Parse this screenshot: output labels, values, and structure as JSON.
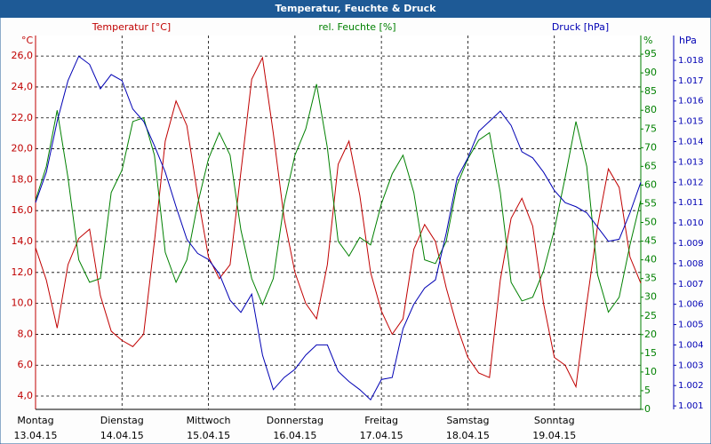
{
  "chart_data": {
    "type": "line",
    "title": "Temperatur, Feuchte & Druck",
    "ylabel": "°C",
    "y2label": "%",
    "y3label": "hPa",
    "x": [
      0,
      0.125,
      0.25,
      0.375,
      0.5,
      0.625,
      0.75,
      0.875,
      1,
      1.125,
      1.25,
      1.375,
      1.5,
      1.625,
      1.75,
      1.875,
      2,
      2.125,
      2.25,
      2.375,
      2.5,
      2.625,
      2.75,
      2.875,
      3,
      3.125,
      3.25,
      3.375,
      3.5,
      3.625,
      3.75,
      3.875,
      4,
      4.125,
      4.25,
      4.375,
      4.5,
      4.625,
      4.75,
      4.875,
      5,
      5.125,
      5.25,
      5.375,
      5.5,
      5.625,
      5.75,
      5.875,
      6,
      6.125,
      6.25,
      6.375,
      6.5,
      6.625,
      6.75,
      6.875,
      7
    ],
    "xlim": [
      0,
      7
    ],
    "xticks": [
      {
        "value": 0,
        "label": "Montag"
      },
      {
        "value": 1,
        "label": "Dienstag"
      },
      {
        "value": 2,
        "label": "Mittwoch"
      },
      {
        "value": 3,
        "label": "Donnerstag"
      },
      {
        "value": 4,
        "label": "Freitag"
      },
      {
        "value": 5,
        "label": "Samstag"
      },
      {
        "value": 6,
        "label": "Sonntag"
      }
    ],
    "xtick_dates": [
      "13.04.15",
      "14.04.15",
      "15.04.15",
      "16.04.15",
      "17.04.15",
      "18.04.15",
      "19.04.15"
    ],
    "ylim": [
      3.14,
      27.33
    ],
    "yticks": [
      {
        "value": 4,
        "label": "4,0"
      },
      {
        "value": 6,
        "label": "6,0"
      },
      {
        "value": 8,
        "label": "8,0"
      },
      {
        "value": 10,
        "label": "10,0"
      },
      {
        "value": 12,
        "label": "12,0"
      },
      {
        "value": 14,
        "label": "14,0"
      },
      {
        "value": 16,
        "label": "16,0"
      },
      {
        "value": 18,
        "label": "18,0"
      },
      {
        "value": 20,
        "label": "20,0"
      },
      {
        "value": 22,
        "label": "22,0"
      },
      {
        "value": 24,
        "label": "24,0"
      },
      {
        "value": 26,
        "label": "26,0"
      }
    ],
    "y2lim": [
      0,
      100
    ],
    "y2ticks": [
      0,
      5,
      10,
      15,
      20,
      25,
      30,
      35,
      40,
      45,
      50,
      55,
      60,
      65,
      70,
      75,
      80,
      85,
      90,
      95
    ],
    "y3lim": [
      1.00083,
      1.01922
    ],
    "y3ticks": [
      1.001,
      1.002,
      1.003,
      1.004,
      1.005,
      1.006,
      1.007,
      1.008,
      1.009,
      {
        "value": 1.01,
        "label": "1.010"
      },
      1.011,
      1.012,
      1.013,
      1.014,
      1.015,
      1.016,
      1.017,
      1.018
    ],
    "grid": true,
    "series": [
      {
        "name": "Temperatur [°C]",
        "color": "#c00000",
        "axis": "y",
        "values": [
          13.6,
          11.5,
          8.4,
          12.5,
          14.2,
          14.8,
          10.5,
          8.2,
          7.6,
          7.2,
          8.0,
          14.0,
          20.5,
          23.1,
          21.5,
          17.0,
          13.0,
          11.6,
          12.5,
          18.5,
          24.5,
          25.9,
          21.0,
          15.5,
          12.0,
          10.0,
          9.0,
          12.5,
          19.0,
          20.5,
          17.0,
          12.0,
          9.5,
          8.0,
          9.0,
          13.5,
          15.1,
          14.0,
          11.0,
          8.5,
          6.5,
          5.5,
          5.2,
          11.5,
          15.5,
          16.8,
          15.0,
          10.0,
          6.5,
          6.0,
          4.6,
          10.0,
          15.0,
          18.7,
          17.5,
          13.0,
          11.3
        ]
      },
      {
        "name": "rel. Feuchte [%]",
        "color": "#008000",
        "axis": "y2",
        "values": [
          56,
          65,
          80,
          62,
          40,
          34,
          35,
          58,
          64,
          77,
          78,
          68,
          42,
          34,
          40,
          55,
          67,
          74,
          68,
          48,
          35,
          28,
          35,
          55,
          68,
          75,
          87,
          70,
          45,
          41,
          46,
          44,
          55,
          63,
          68,
          58,
          40,
          39,
          45,
          60,
          67,
          72,
          74,
          58,
          34,
          29,
          30,
          37,
          48,
          62,
          77,
          65,
          36,
          26,
          30,
          44,
          56
        ]
      },
      {
        "name": "Druck [hPa]",
        "color": "#0000b4",
        "axis": "y3",
        "values": [
          1.011,
          1.0125,
          1.015,
          1.017,
          1.0182,
          1.0178,
          1.0166,
          1.0173,
          1.017,
          1.0156,
          1.015,
          1.0138,
          1.0125,
          1.0108,
          1.0092,
          1.0085,
          1.0082,
          1.0075,
          1.0062,
          1.0056,
          1.0065,
          1.0035,
          1.0018,
          1.0024,
          1.0028,
          1.0035,
          1.004,
          1.004,
          1.0027,
          1.0022,
          1.0018,
          1.0013,
          1.0023,
          1.0024,
          1.0048,
          1.006,
          1.0068,
          1.0072,
          1.0095,
          1.0122,
          1.0132,
          1.0145,
          1.015,
          1.0155,
          1.0148,
          1.0135,
          1.0132,
          1.0125,
          1.0116,
          1.011,
          1.0108,
          1.0105,
          1.0098,
          1.0091,
          1.0092,
          1.0105,
          1.012
        ]
      }
    ]
  }
}
